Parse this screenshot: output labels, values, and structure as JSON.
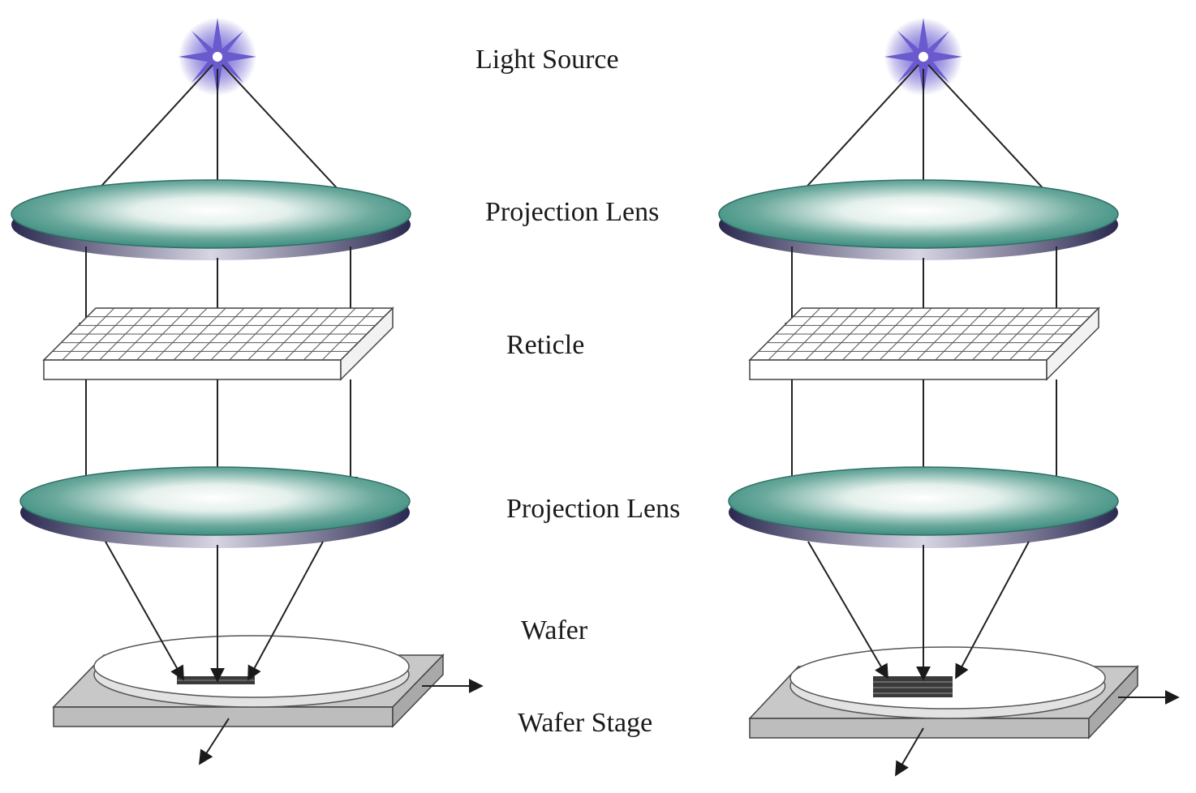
{
  "labels": {
    "light_source": "Light Source",
    "projection_lens_top": "Projection Lens",
    "reticle": "Reticle",
    "projection_lens_bottom": "Projection Lens",
    "wafer": "Wafer",
    "wafer_stage": "Wafer Stage"
  },
  "colors": {
    "lens_teal": "#3f8f82",
    "lens_rim": "#2e2c5a",
    "light_source": "#6a5acd",
    "stage_gray": "#bdbdbd",
    "line": "#222222"
  }
}
